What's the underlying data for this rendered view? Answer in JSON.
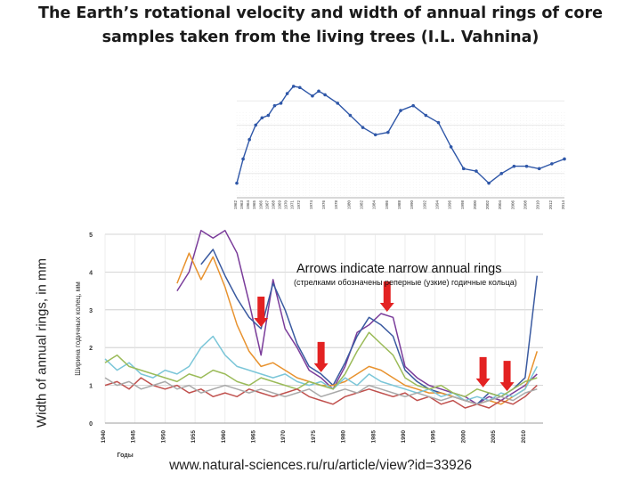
{
  "title_line1": "The Earth’s rotational velocity and width of annual rings of core",
  "title_line2": "samples taken from the living trees (I.L. Vahnina)",
  "y_axis_label": "Width of annual rings, in mm",
  "annotation_main": "Arrows indicate narrow annual rings",
  "annotation_sub": "(стрелками обозначены реперные (узкие) годичные кольца)",
  "source": "www.natural-sciences.ru/ru/article/view?id=33926",
  "colors": {
    "rotation_line": "#2f57a8",
    "arrow": "#e32222",
    "grid": "#c8c8c8"
  },
  "chart_data": [
    {
      "type": "line",
      "title": "",
      "xlabel": "",
      "ylabel": "",
      "x": [
        1962,
        1963,
        1964,
        1965,
        1966,
        1967,
        1968,
        1969,
        1970,
        1971,
        1972,
        1974,
        1975,
        1976,
        1978,
        1980,
        1982,
        1984,
        1986,
        1988,
        1990,
        1992,
        1994,
        1996,
        1998,
        2000,
        2002,
        2004,
        2006,
        2008,
        2010,
        2012,
        2014
      ],
      "x_tick_labels": [
        "1962",
        "1963",
        "1964",
        "1965",
        "1966",
        "1967",
        "1968",
        "1969",
        "1970",
        "1971",
        "1972",
        "1974",
        "1976",
        "1978",
        "1980",
        "1982",
        "1984",
        "1986",
        "1988",
        "1990",
        "1992",
        "1994",
        "1996",
        "1998",
        "2000",
        "2002",
        "2004",
        "2006",
        "2008",
        "2010",
        "2012",
        "2014"
      ],
      "series": [
        {
          "values": [
            0.6,
            1.6,
            2.4,
            3.0,
            3.3,
            3.4,
            3.8,
            3.9,
            4.3,
            4.6,
            4.55,
            4.2,
            4.4,
            4.25,
            3.9,
            3.4,
            2.9,
            2.6,
            2.7,
            3.6,
            3.8,
            3.4,
            3.1,
            2.1,
            1.2,
            1.1,
            0.6,
            1.0,
            1.3,
            1.3,
            1.2,
            1.4,
            1.6
          ]
        }
      ]
    },
    {
      "type": "line",
      "title": "",
      "xlabel": "Годы",
      "ylabel": "Ширина годичных колец, мм",
      "xlim": [
        1940,
        2013
      ],
      "ylim": [
        0,
        5
      ],
      "x_ticks": [
        1940,
        1945,
        1950,
        1955,
        1960,
        1965,
        1970,
        1975,
        1980,
        1985,
        1990,
        1995,
        2000,
        2005,
        2010
      ],
      "y_ticks": [
        0,
        1,
        2,
        3,
        4,
        5
      ],
      "grid": true,
      "x": [
        1940,
        1942,
        1944,
        1946,
        1948,
        1950,
        1952,
        1954,
        1956,
        1958,
        1960,
        1962,
        1964,
        1966,
        1968,
        1970,
        1972,
        1974,
        1976,
        1978,
        1980,
        1982,
        1984,
        1986,
        1988,
        1990,
        1992,
        1994,
        1996,
        1998,
        2000,
        2002,
        2004,
        2006,
        2008,
        2010,
        2012
      ],
      "series": [
        {
          "color": "#7a3c9a",
          "values": [
            null,
            null,
            null,
            null,
            null,
            null,
            3.5,
            4.0,
            5.1,
            4.9,
            5.1,
            4.5,
            3.2,
            1.8,
            3.8,
            2.5,
            2.0,
            1.4,
            1.2,
            0.9,
            1.5,
            2.4,
            2.6,
            2.9,
            2.8,
            1.5,
            1.2,
            1.0,
            0.9,
            0.8,
            0.7,
            0.5,
            0.7,
            0.6,
            0.8,
            1.0,
            1.3
          ]
        },
        {
          "color": "#3a5aa0",
          "values": [
            null,
            null,
            null,
            null,
            null,
            null,
            null,
            null,
            4.2,
            4.6,
            3.9,
            3.3,
            2.8,
            2.5,
            3.7,
            3.0,
            2.1,
            1.5,
            1.3,
            1.0,
            1.6,
            2.3,
            2.8,
            2.6,
            2.3,
            1.4,
            1.1,
            0.9,
            0.8,
            0.7,
            0.6,
            0.5,
            0.8,
            0.7,
            0.9,
            1.2,
            3.9
          ]
        },
        {
          "color": "#e8922e",
          "values": [
            null,
            null,
            null,
            null,
            null,
            null,
            3.7,
            4.5,
            3.8,
            4.4,
            3.6,
            2.6,
            1.9,
            1.5,
            1.6,
            1.4,
            1.2,
            1.1,
            1.0,
            1.0,
            1.1,
            1.3,
            1.5,
            1.4,
            1.2,
            1.0,
            0.9,
            0.8,
            0.8,
            0.7,
            0.6,
            0.5,
            0.6,
            0.5,
            0.7,
            0.9,
            1.9
          ]
        },
        {
          "color": "#7bc6d8",
          "values": [
            1.7,
            1.4,
            1.6,
            1.3,
            1.2,
            1.4,
            1.3,
            1.5,
            2.0,
            2.3,
            1.8,
            1.5,
            1.4,
            1.3,
            1.2,
            1.3,
            1.1,
            1.0,
            1.1,
            0.9,
            1.2,
            1.0,
            1.3,
            1.1,
            1.0,
            0.9,
            0.8,
            0.9,
            0.7,
            0.8,
            0.6,
            0.7,
            0.6,
            0.8,
            0.7,
            0.9,
            1.5
          ]
        },
        {
          "color": "#9bbb59",
          "values": [
            1.6,
            1.8,
            1.5,
            1.4,
            1.3,
            1.2,
            1.1,
            1.3,
            1.2,
            1.4,
            1.3,
            1.1,
            1.0,
            1.2,
            1.1,
            1.0,
            0.9,
            1.1,
            1.0,
            0.9,
            1.3,
            1.9,
            2.4,
            2.1,
            1.8,
            1.2,
            1.0,
            0.9,
            1.0,
            0.8,
            0.7,
            0.9,
            0.8,
            0.7,
            0.9,
            1.1,
            1.2
          ]
        },
        {
          "color": "#c0504d",
          "values": [
            1.0,
            1.1,
            0.9,
            1.2,
            1.0,
            0.9,
            1.0,
            0.8,
            0.9,
            0.7,
            0.8,
            0.7,
            0.9,
            0.8,
            0.7,
            0.8,
            0.9,
            0.7,
            0.6,
            0.5,
            0.7,
            0.8,
            0.9,
            0.8,
            0.7,
            0.8,
            0.6,
            0.7,
            0.5,
            0.6,
            0.4,
            0.5,
            0.4,
            0.6,
            0.5,
            0.7,
            1.0
          ]
        },
        {
          "color": "#a9a9a9",
          "values": [
            1.2,
            1.0,
            1.1,
            0.9,
            1.0,
            1.1,
            0.9,
            1.0,
            0.8,
            0.9,
            1.0,
            0.9,
            0.8,
            0.9,
            0.8,
            0.7,
            0.8,
            0.9,
            0.7,
            0.8,
            0.9,
            0.8,
            1.0,
            0.9,
            0.8,
            0.7,
            0.8,
            0.7,
            0.6,
            0.7,
            0.6,
            0.5,
            0.6,
            0.7,
            0.6,
            0.8,
            0.9
          ]
        }
      ],
      "narrow_ring_arrows": [
        1966,
        1976,
        1987,
        2003,
        2007
      ]
    }
  ]
}
